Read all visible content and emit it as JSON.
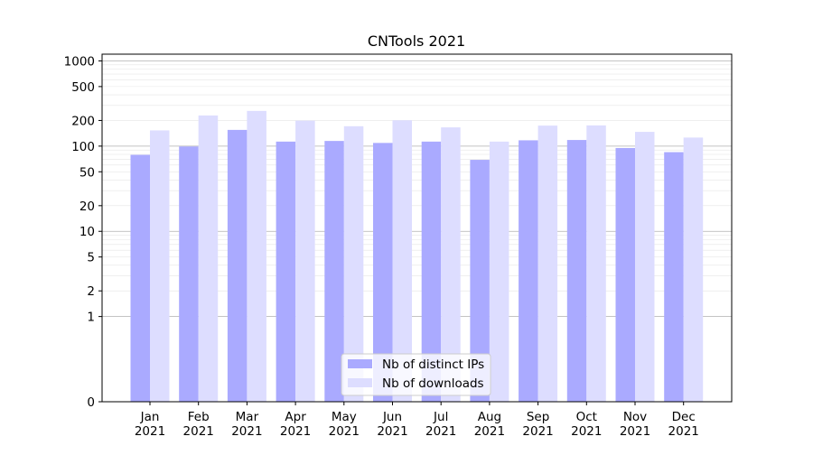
{
  "chart_data": {
    "type": "bar",
    "title": "CNTools 2021",
    "xlabel": "",
    "ylabel": "",
    "yscale": "symlog",
    "ylim": [
      0,
      1200
    ],
    "yticks": [
      0,
      1,
      2,
      5,
      10,
      20,
      50,
      100,
      200,
      500,
      1000
    ],
    "ytick_labels": [
      "0",
      "1",
      "2",
      "5",
      "10",
      "20",
      "50",
      "100",
      "200",
      "500",
      "1000"
    ],
    "categories": [
      "Jan\n2021",
      "Feb\n2021",
      "Mar\n2021",
      "Apr\n2021",
      "May\n2021",
      "Jun\n2021",
      "Jul\n2021",
      "Aug\n2021",
      "Sep\n2021",
      "Oct\n2021",
      "Nov\n2021",
      "Dec\n2021"
    ],
    "series": [
      {
        "name": "Nb of distinct IPs",
        "color": "#aaaaff",
        "values": [
          79,
          99,
          155,
          113,
          115,
          109,
          113,
          69,
          117,
          118,
          95,
          85
        ]
      },
      {
        "name": "Nb of downloads",
        "color": "#ddddff",
        "values": [
          153,
          229,
          259,
          199,
          171,
          201,
          166,
          113,
          174,
          175,
          147,
          126
        ]
      }
    ],
    "grid": true,
    "legend_position": "bottom-center"
  }
}
